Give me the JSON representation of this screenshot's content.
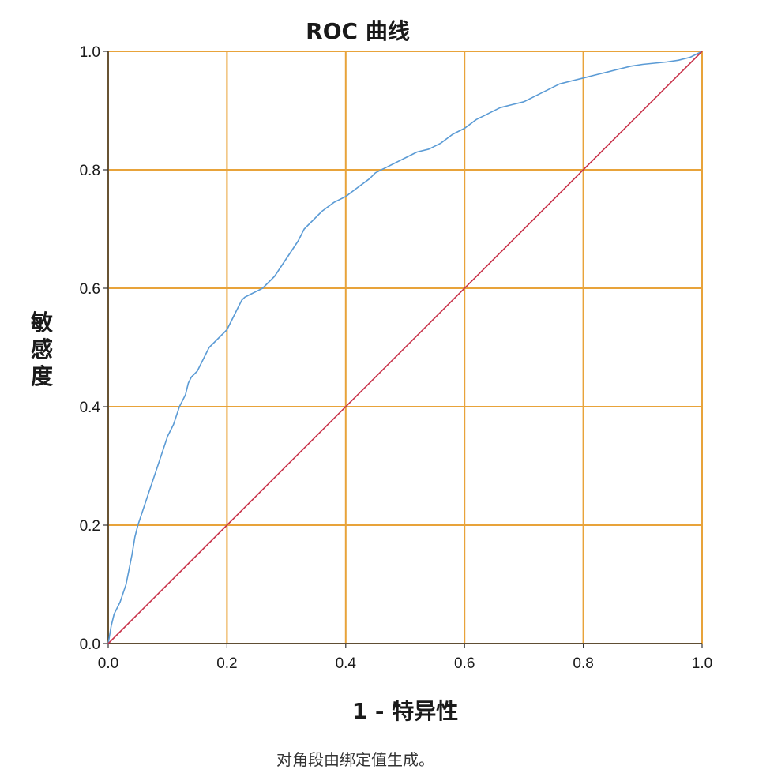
{
  "chart_data": {
    "type": "line",
    "title": "ROC 曲线",
    "xlabel": "1 - 特异性",
    "ylabel": "敏感度",
    "footnote": "对角段由绑定值生成。",
    "xlim": [
      0,
      1
    ],
    "ylim": [
      0,
      1
    ],
    "x_ticks": [
      "0.0",
      "0.2",
      "0.4",
      "0.6",
      "0.8",
      "1.0"
    ],
    "y_ticks": [
      "0.0",
      "0.2",
      "0.4",
      "0.6",
      "0.8",
      "1.0"
    ],
    "grid": true,
    "legend": "none",
    "colors": {
      "grid": "#e8a33a",
      "roc_curve": "#5b9bd5",
      "reference_line": "#c8324a",
      "axis": "#333333"
    },
    "series": [
      {
        "x": [
          0.0,
          0.005,
          0.01,
          0.02,
          0.03,
          0.04,
          0.045,
          0.05,
          0.06,
          0.07,
          0.08,
          0.09,
          0.1,
          0.11,
          0.12,
          0.125,
          0.13,
          0.135,
          0.14,
          0.15,
          0.16,
          0.17,
          0.18,
          0.19,
          0.2,
          0.21,
          0.22,
          0.225,
          0.23,
          0.24,
          0.25,
          0.26,
          0.28,
          0.3,
          0.32,
          0.33,
          0.34,
          0.35,
          0.36,
          0.38,
          0.4,
          0.42,
          0.44,
          0.45,
          0.46,
          0.47,
          0.48,
          0.5,
          0.52,
          0.54,
          0.56,
          0.58,
          0.6,
          0.62,
          0.64,
          0.66,
          0.68,
          0.7,
          0.72,
          0.74,
          0.76,
          0.78,
          0.8,
          0.82,
          0.84,
          0.86,
          0.88,
          0.9,
          0.92,
          0.94,
          0.96,
          0.98,
          1.0
        ],
        "y": [
          0.0,
          0.03,
          0.05,
          0.07,
          0.1,
          0.15,
          0.18,
          0.2,
          0.23,
          0.26,
          0.29,
          0.32,
          0.35,
          0.37,
          0.4,
          0.41,
          0.42,
          0.44,
          0.45,
          0.46,
          0.48,
          0.5,
          0.51,
          0.52,
          0.53,
          0.55,
          0.57,
          0.58,
          0.585,
          0.59,
          0.595,
          0.6,
          0.62,
          0.65,
          0.68,
          0.7,
          0.71,
          0.72,
          0.73,
          0.745,
          0.755,
          0.77,
          0.785,
          0.795,
          0.8,
          0.805,
          0.81,
          0.82,
          0.83,
          0.835,
          0.845,
          0.86,
          0.87,
          0.885,
          0.895,
          0.905,
          0.91,
          0.915,
          0.925,
          0.935,
          0.945,
          0.95,
          0.955,
          0.96,
          0.965,
          0.97,
          0.975,
          0.978,
          0.98,
          0.982,
          0.985,
          0.99,
          1.0
        ]
      },
      {
        "x": [
          0,
          1
        ],
        "y": [
          0,
          1
        ]
      }
    ]
  }
}
